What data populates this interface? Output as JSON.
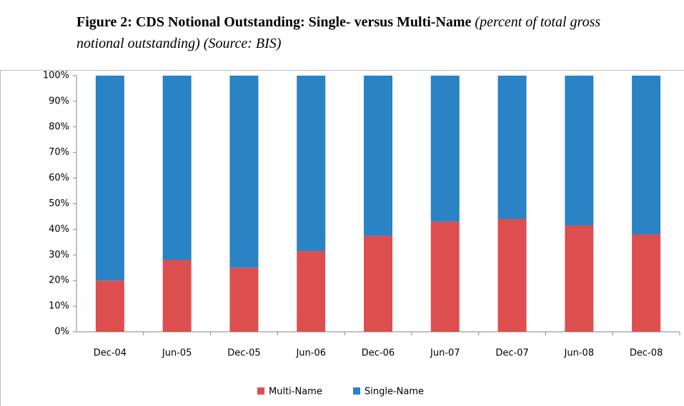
{
  "chart_data": {
    "type": "stacked_bar",
    "title": "Figure 2: CDS Notional Outstanding: Single- versus Multi-Name",
    "subtitle": "(percent of total  gross notional outstanding) (Source: BIS)",
    "categories": [
      "Dec-04",
      "Jun-05",
      "Dec-05",
      "Jun-06",
      "Dec-06",
      "Jun-07",
      "Dec-07",
      "Jun-08",
      "Dec-08"
    ],
    "series": [
      {
        "name": "Multi-Name",
        "color": "#dd4f4f",
        "values": [
          20,
          28,
          25,
          31.5,
          37.5,
          43,
          44,
          41.5,
          38
        ]
      },
      {
        "name": "Single-Name",
        "color": "#2a83c4",
        "values": [
          80,
          72,
          75,
          68.5,
          62.5,
          57,
          56,
          58.5,
          62
        ]
      }
    ],
    "ylim": [
      0,
      100
    ],
    "yticks": [
      {
        "value": 0,
        "label": "0%"
      },
      {
        "value": 10,
        "label": "10%"
      },
      {
        "value": 20,
        "label": "20%"
      },
      {
        "value": 30,
        "label": "30%"
      },
      {
        "value": 40,
        "label": "40%"
      },
      {
        "value": 50,
        "label": "50%"
      },
      {
        "value": 60,
        "label": "60%"
      },
      {
        "value": 70,
        "label": "70%"
      },
      {
        "value": 80,
        "label": "80%"
      },
      {
        "value": 90,
        "label": "90%"
      },
      {
        "value": 100,
        "label": "100%"
      }
    ],
    "legend": "bottom"
  }
}
